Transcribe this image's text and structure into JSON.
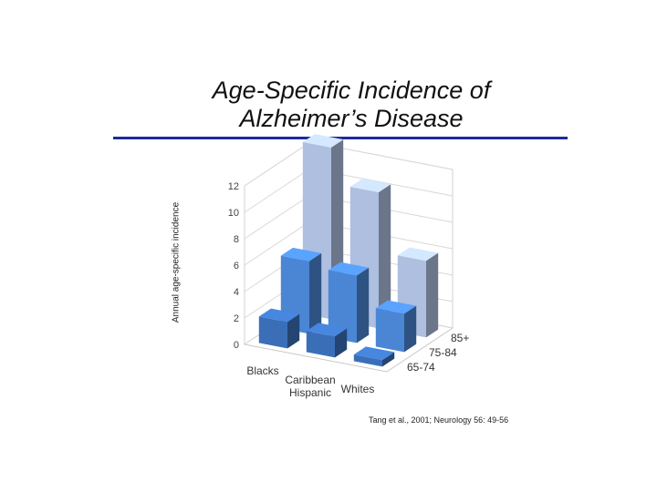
{
  "slide": {
    "title_line1": "Age-Specific Incidence of",
    "title_line2": "Alzheimer’s Disease",
    "citation": "Tang et al., 2001; Neurology 56: 49-56"
  },
  "colors": {
    "rule": "#1f2a9c",
    "age_65_74": "#3a6fb8",
    "age_75_84": "#4a86d4",
    "age_85_plus": "#aebfe0"
  },
  "chart_data": {
    "type": "bar",
    "subtype": "3d-column",
    "title": "Age-Specific Incidence of Alzheimer’s Disease",
    "ylabel": "Annual age-specific incidence",
    "ylim": [
      0,
      12
    ],
    "yticks": [
      0,
      2,
      4,
      6,
      8,
      10,
      12
    ],
    "categories": [
      "Blacks",
      "Caribbean Hispanic",
      "Whites"
    ],
    "category_lines": [
      [
        "Blacks"
      ],
      [
        "Caribbean",
        "Hispanic"
      ],
      [
        "Whites"
      ]
    ],
    "series": [
      {
        "name": "65-74",
        "values": [
          2.0,
          1.6,
          0.5
        ]
      },
      {
        "name": "75-84",
        "values": [
          5.5,
          5.1,
          2.9
        ]
      },
      {
        "name": "85+",
        "values": [
          13.0,
          10.3,
          5.8
        ]
      }
    ],
    "grid": true
  }
}
